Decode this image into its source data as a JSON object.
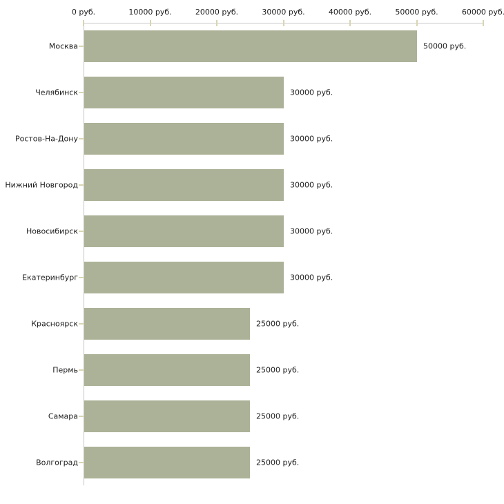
{
  "chart_data": {
    "type": "bar",
    "orientation": "horizontal",
    "title": "",
    "xlabel": "",
    "ylabel": "",
    "unit": "руб.",
    "categories": [
      "Москва",
      "Челябинск",
      "Ростов-На-Дону",
      "Нижний Новгород",
      "Новосибирск",
      "Екатеринбург",
      "Красноярск",
      "Пермь",
      "Самара",
      "Волгоград"
    ],
    "values": [
      50000,
      30000,
      30000,
      30000,
      30000,
      30000,
      25000,
      25000,
      25000,
      25000
    ],
    "value_labels": [
      "50000 руб.",
      "30000 руб.",
      "30000 руб.",
      "30000 руб.",
      "30000 руб.",
      "30000 руб.",
      "25000 руб.",
      "25000 руб.",
      "25000 руб.",
      "25000 руб."
    ],
    "x_ticks": [
      0,
      10000,
      20000,
      30000,
      40000,
      50000,
      60000
    ],
    "x_tick_labels": [
      "0 руб.",
      "10000 руб.",
      "20000 руб.",
      "30000 руб.",
      "40000 руб.",
      "50000 руб.",
      "60000 руб."
    ],
    "xlim": [
      0,
      60000
    ],
    "grid": false,
    "legend": false,
    "axis_position": "top",
    "colors": {
      "bar": "#acb297",
      "axis_line": "#c6c6c6",
      "tick_mark": "#d8d5b2",
      "text": "#1c1c1c",
      "background": "#ffffff"
    }
  }
}
